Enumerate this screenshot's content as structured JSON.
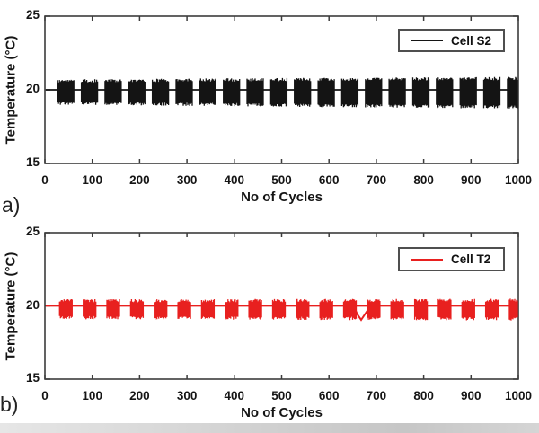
{
  "figure": {
    "background": "#ffffff",
    "frame_color": "#3c3c3c",
    "bottom_strip_color": "#cfcfcf"
  },
  "panels": [
    {
      "corner_label": "a)"
    },
    {
      "corner_label": "b)"
    }
  ],
  "chart_data": [
    {
      "type": "line",
      "panel": "a",
      "title": "",
      "xlabel": "No of Cycles",
      "ylabel": "Temperature (°C)",
      "xlim": [
        0,
        1000
      ],
      "xticks": [
        0,
        100,
        200,
        300,
        400,
        500,
        600,
        700,
        800,
        900,
        1000
      ],
      "ylim": [
        15,
        25
      ],
      "yticks": [
        25,
        20,
        15
      ],
      "grid": false,
      "legend": {
        "entries": [
          "Cell S2"
        ],
        "position": "top-right"
      },
      "series": [
        {
          "name": "Cell S2",
          "color": "#141414",
          "baseline_value": 20.0,
          "pattern": "flat line at 20 °C with periodic dense oscillation bursts",
          "burst_first_center": 45,
          "burst_period": 50,
          "burst_count": 20,
          "burst_width_cycles": 36,
          "burst_y_high": 20.6,
          "burst_y_low": 19.1,
          "amplitude_growth_toward_end": 1.3
        }
      ]
    },
    {
      "type": "line",
      "panel": "b",
      "title": "",
      "xlabel": "No of Cycles",
      "ylabel": "Temperature (°C)",
      "xlim": [
        0,
        1000
      ],
      "xticks": [
        0,
        100,
        200,
        300,
        400,
        500,
        600,
        700,
        800,
        900,
        1000
      ],
      "ylim": [
        15,
        25
      ],
      "yticks": [
        25,
        20,
        15
      ],
      "grid": false,
      "legend": {
        "entries": [
          "Cell T2"
        ],
        "position": "top-right"
      },
      "series": [
        {
          "name": "Cell T2",
          "color": "#e8201f",
          "baseline_value": 20.0,
          "pattern": "flat line at 20 °C with periodic oscillation bursts",
          "burst_first_center": 45,
          "burst_period": 50,
          "burst_count": 20,
          "burst_width_cycles": 28,
          "burst_y_high": 20.35,
          "burst_y_low": 19.2,
          "amplitude_growth_toward_end": 1.1,
          "anomaly_dip": {
            "x_start": 652,
            "x_bottom": 668,
            "x_end": 688,
            "y_min": 19.05
          }
        }
      ]
    }
  ]
}
